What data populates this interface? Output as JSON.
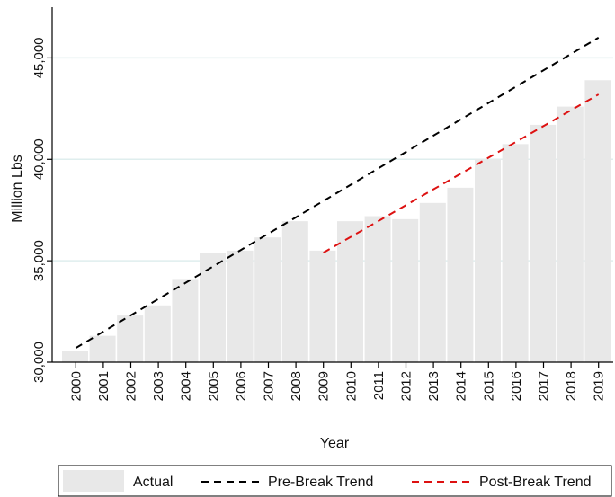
{
  "chart_data": {
    "type": "bar",
    "title": "",
    "xlabel": "Year",
    "ylabel": "Million Lbs",
    "ylim": [
      30000,
      47500
    ],
    "yticks": [
      30000,
      35000,
      40000,
      45000
    ],
    "ytick_labels": [
      "30,000",
      "35,000",
      "40,000",
      "45,000"
    ],
    "grid": true,
    "legend_position": "bottom",
    "categories": [
      "2000",
      "2001",
      "2002",
      "2003",
      "2004",
      "2005",
      "2006",
      "2007",
      "2008",
      "2009",
      "2010",
      "2011",
      "2012",
      "2013",
      "2014",
      "2015",
      "2016",
      "2017",
      "2018",
      "2019"
    ],
    "series": [
      {
        "name": "Actual",
        "type": "bar",
        "color": "#e8e8e8",
        "values": [
          30550,
          31300,
          32300,
          32800,
          34100,
          35400,
          35500,
          36150,
          36950,
          35500,
          36950,
          37200,
          37050,
          37850,
          38600,
          40000,
          40750,
          41700,
          42600,
          43900
        ]
      },
      {
        "name": "Pre-Break Trend",
        "type": "line",
        "style": "dashed",
        "color": "#000000",
        "x": [
          "2000",
          "2019"
        ],
        "values": [
          30700,
          46000
        ]
      },
      {
        "name": "Post-Break Trend",
        "type": "line",
        "style": "dashed",
        "color": "#dd1111",
        "x": [
          "2009",
          "2019"
        ],
        "values": [
          35400,
          43200
        ]
      }
    ]
  }
}
